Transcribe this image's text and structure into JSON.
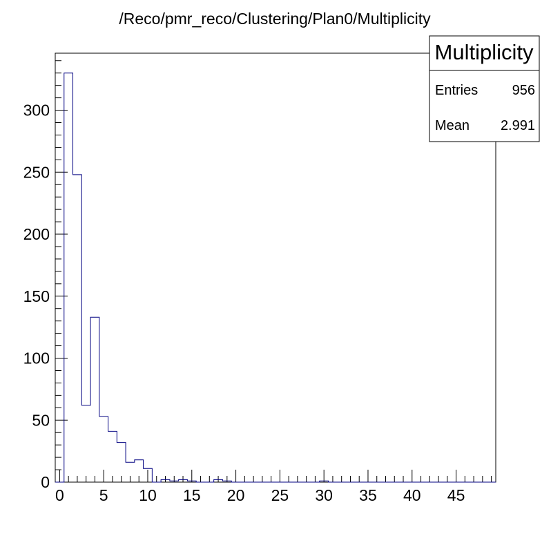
{
  "chart_data": {
    "type": "bar",
    "title": "/Reco/pmr_reco/Clustering/Plan0/Multiplicity",
    "xlabel": "",
    "ylabel": "",
    "xlim": [
      -0.5,
      49.5
    ],
    "ylim": [
      0,
      346
    ],
    "x_ticks": [
      0,
      5,
      10,
      15,
      20,
      25,
      30,
      35,
      40,
      45
    ],
    "y_ticks": [
      0,
      50,
      100,
      150,
      200,
      250,
      300
    ],
    "bin_width": 1,
    "bins_start": -0.5,
    "values": [
      0,
      330,
      248,
      62,
      133,
      53,
      41,
      32,
      16,
      18,
      11,
      0,
      2,
      1,
      2,
      1,
      0,
      0,
      2,
      1,
      0,
      0,
      0,
      0,
      0,
      0,
      0,
      0,
      0,
      0,
      1,
      0,
      0,
      0,
      0,
      0,
      0,
      0,
      0,
      0,
      0,
      0,
      0,
      0,
      0,
      0,
      0,
      0,
      0,
      0
    ],
    "grid": false,
    "line_color": "#000080",
    "stats_box": {
      "title": "Multiplicity",
      "rows": [
        {
          "label": "Entries",
          "value": "956"
        },
        {
          "label": "Mean",
          "value": "2.991"
        }
      ]
    }
  }
}
